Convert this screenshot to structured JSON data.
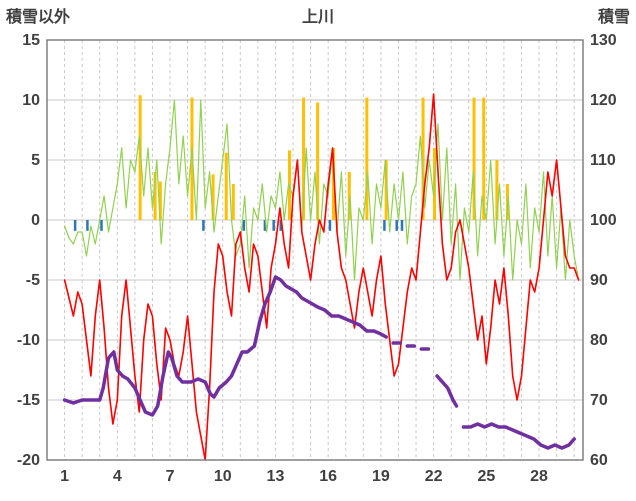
{
  "header": {
    "left_axis_title": "積雪以外",
    "title": "上川",
    "right_axis_title": "積雪"
  },
  "chart_data": {
    "type": "line",
    "title": "上川",
    "station": "上川",
    "grid": true,
    "grid_color": "#c8c8c8",
    "border_color": "#808080",
    "left_axis": {
      "label": "積雪以外",
      "min": -20,
      "max": 15,
      "tick_step": 5,
      "tick_labels": [
        15,
        10,
        5,
        0,
        -5,
        -10,
        -15,
        -20
      ]
    },
    "right_axis": {
      "label": "積雪",
      "min": 60,
      "max": 130,
      "tick_step": 10,
      "tick_labels": [
        130,
        120,
        110,
        100,
        90,
        80,
        70,
        60
      ]
    },
    "x_axis": {
      "min": 0,
      "max": 30.5,
      "grid_step": 1,
      "tick_labels": [
        1,
        4,
        7,
        10,
        13,
        16,
        19,
        22,
        25,
        28
      ]
    },
    "sun_bars": {
      "name": "sunshine",
      "color": "#FFC000",
      "values": [
        [
          5.3,
          10.4
        ],
        [
          6.15,
          4
        ],
        [
          6.45,
          3.2
        ],
        [
          8.25,
          10.2
        ],
        [
          9.45,
          3.8
        ],
        [
          10.2,
          5.6
        ],
        [
          10.6,
          3
        ],
        [
          13.8,
          5.8
        ],
        [
          14.6,
          10.2
        ],
        [
          15.4,
          9.8
        ],
        [
          16.3,
          6
        ],
        [
          17.2,
          4
        ],
        [
          18.2,
          10.2
        ],
        [
          19.3,
          5
        ],
        [
          21.4,
          10.2
        ],
        [
          22.05,
          6
        ],
        [
          24.3,
          10.2
        ],
        [
          24.85,
          10.2
        ],
        [
          25.6,
          5
        ],
        [
          26.2,
          3
        ]
      ]
    },
    "precip_marks": {
      "name": "precipitation",
      "color": "#2E75B6",
      "depth": -0.9,
      "values": [
        1.6,
        2.3,
        3.1,
        8.9,
        11.2,
        12.4,
        12.9,
        13.3,
        16.1,
        19.2,
        19.9,
        20.2
      ]
    },
    "series": [
      {
        "name": "wind-green",
        "color": "#92D050",
        "axis": "left",
        "width": 1.2,
        "x_start": 1,
        "x_step": 0.25,
        "values": [
          -0.5,
          -1.5,
          -2,
          -1,
          -1,
          -3,
          -0.5,
          -2,
          0,
          2,
          -1,
          1,
          3,
          6,
          1,
          5,
          4,
          7,
          2,
          6,
          1,
          5,
          -2,
          3,
          6,
          10,
          3,
          7,
          2,
          6,
          0,
          10,
          1,
          4,
          -1,
          2,
          5,
          8,
          0,
          -3,
          -2,
          2,
          -4,
          1,
          0,
          3,
          -1,
          2,
          1,
          4,
          0,
          3,
          2,
          5,
          -1,
          6,
          0,
          4,
          -2,
          3,
          2,
          6,
          -1,
          4,
          -3,
          2,
          -5,
          1,
          0,
          4,
          -2,
          3,
          1,
          5,
          -1,
          3,
          0,
          4,
          -2,
          2,
          3,
          7,
          1,
          5,
          2,
          8,
          0,
          6,
          -2,
          3,
          -5,
          1,
          -1,
          4,
          -3,
          2,
          0,
          5,
          -2,
          3,
          -3,
          2,
          -5,
          0,
          -2,
          3,
          -4,
          1,
          -1,
          4,
          -3,
          2,
          -4,
          1,
          -5,
          0,
          -3,
          -5
        ]
      },
      {
        "name": "temperature-red",
        "color": "#FF0000",
        "axis": "left",
        "width": 1.6,
        "x_start": 1,
        "x_step": 0.25,
        "values": [
          -5,
          -6.5,
          -8,
          -6,
          -7,
          -10,
          -13,
          -8,
          -5,
          -9,
          -14,
          -17,
          -15,
          -8,
          -5,
          -9,
          -13,
          -16,
          -10,
          -7,
          -8,
          -12,
          -15,
          -9,
          -10,
          -12,
          -13,
          -11,
          -8,
          -12,
          -16,
          -18,
          -20,
          -14,
          -6,
          -2,
          -3,
          -6,
          -8,
          -2,
          -1,
          -4,
          -6,
          -2,
          -3,
          -6,
          -9,
          -4,
          -2,
          1,
          -2,
          -4,
          2,
          5,
          -1,
          -3,
          -5,
          -2,
          0,
          -1,
          3,
          6,
          -1,
          -4,
          -5,
          -7,
          -9,
          -6,
          -4,
          -6,
          -8,
          -5,
          -3,
          -7,
          -10,
          -13,
          -12,
          -9,
          -6,
          -4,
          -5,
          -1,
          3,
          6,
          10.5,
          4,
          -2,
          -5,
          -4,
          -1,
          0,
          -2,
          -4,
          -7,
          -10,
          -8,
          -12,
          -9,
          -5,
          -7,
          -4,
          -8,
          -13,
          -15,
          -13,
          -9,
          -5,
          -6,
          -4,
          0,
          4,
          2,
          5,
          1,
          -3,
          -4,
          -4,
          -5
        ]
      },
      {
        "name": "snow-depth-purple",
        "color": "#7030A0",
        "axis": "right",
        "width": 3.5,
        "points": [
          [
            1,
            70
          ],
          [
            1.5,
            69.5
          ],
          [
            2,
            70
          ],
          [
            2.5,
            70
          ],
          [
            3,
            70
          ],
          [
            3.2,
            72
          ],
          [
            3.5,
            77
          ],
          [
            3.8,
            78
          ],
          [
            4,
            75
          ],
          [
            4.3,
            74
          ],
          [
            4.6,
            73.5
          ],
          [
            5,
            72
          ],
          [
            5.3,
            70
          ],
          [
            5.6,
            68
          ],
          [
            6,
            67.5
          ],
          [
            6.3,
            69
          ],
          [
            6.6,
            74
          ],
          [
            6.9,
            78
          ],
          [
            7.1,
            77
          ],
          [
            7.4,
            74
          ],
          [
            7.7,
            73
          ],
          [
            8.2,
            73
          ],
          [
            8.6,
            73.5
          ],
          [
            9,
            73
          ],
          [
            9.3,
            71
          ],
          [
            9.5,
            70.5
          ],
          [
            9.8,
            72
          ],
          [
            10.2,
            73
          ],
          [
            10.5,
            74
          ],
          [
            10.8,
            76
          ],
          [
            11.1,
            78
          ],
          [
            11.4,
            78
          ],
          [
            11.8,
            79
          ],
          [
            12.1,
            83
          ],
          [
            12.4,
            86
          ],
          [
            12.7,
            88
          ],
          [
            13,
            90.5
          ],
          [
            13.3,
            90
          ],
          [
            13.6,
            89
          ],
          [
            13.9,
            88.5
          ],
          [
            14.2,
            88
          ],
          [
            14.5,
            87
          ],
          [
            14.8,
            86.5
          ],
          [
            15.1,
            86
          ],
          [
            15.4,
            85.5
          ],
          [
            15.8,
            85
          ],
          [
            16.2,
            84
          ],
          [
            16.6,
            84
          ],
          [
            17,
            83.5
          ],
          [
            17.4,
            83
          ],
          [
            17.8,
            82.5
          ],
          [
            18.2,
            81.5
          ],
          [
            18.6,
            81.5
          ],
          [
            19,
            81
          ],
          [
            19.3,
            80.5
          ],
          null,
          [
            19.7,
            79.5
          ],
          [
            20.1,
            79.5
          ],
          null,
          [
            20.5,
            79
          ],
          [
            20.9,
            79
          ],
          null,
          [
            21.3,
            78.5
          ],
          [
            21.7,
            78.5
          ],
          null,
          [
            22.2,
            74
          ],
          [
            22.5,
            73
          ],
          [
            22.8,
            72
          ],
          [
            23.1,
            70
          ],
          [
            23.3,
            69
          ],
          null,
          [
            23.7,
            65.5
          ],
          [
            24.1,
            65.5
          ],
          [
            24.5,
            66
          ],
          [
            24.9,
            65.5
          ],
          [
            25.3,
            66
          ],
          [
            25.7,
            65.5
          ],
          [
            26.1,
            65.5
          ],
          [
            26.5,
            65
          ],
          [
            26.9,
            64.5
          ],
          [
            27.3,
            64
          ],
          [
            27.7,
            63.5
          ],
          [
            28.1,
            62.5
          ],
          [
            28.5,
            62
          ],
          [
            28.9,
            62.5
          ],
          [
            29.3,
            62
          ],
          [
            29.7,
            62.5
          ],
          [
            30,
            63.5
          ]
        ]
      }
    ]
  }
}
